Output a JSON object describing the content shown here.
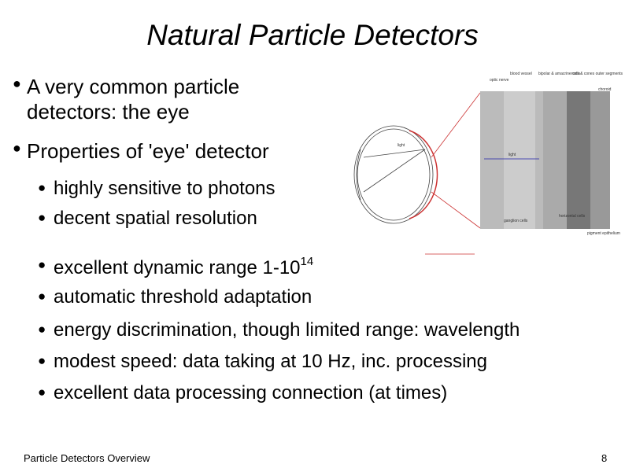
{
  "title": "Natural Particle Detectors",
  "bullets": [
    {
      "text": "A very common particle detectors: the eye",
      "lines": [
        "A very common particle",
        "detectors: the eye"
      ]
    },
    {
      "text": "Properties of 'eye' detector"
    }
  ],
  "sub_bullets": [
    {
      "text": "highly sensitive to photons"
    },
    {
      "text": "decent spatial resolution"
    },
    {
      "text": "excellent dynamic range 1-10",
      "sup": "14"
    },
    {
      "text": "automatic threshold adaptation"
    },
    {
      "text": "energy discrimination, though limited range: wavelength"
    },
    {
      "text": "modest speed: data taking at 10 Hz, inc. processing"
    },
    {
      "text": "excellent data processing connection (at times)"
    }
  ],
  "figure": {
    "labels": [
      "optic nerve",
      "blood vessel",
      "bipolar & amacrine cells",
      "rods & cones outer segments",
      "choroid",
      "light",
      "light",
      "ganglion cells",
      "horizontal cells",
      "pigment epithelium"
    ]
  },
  "footer": "Particle Detectors Overview",
  "page_number": "8"
}
